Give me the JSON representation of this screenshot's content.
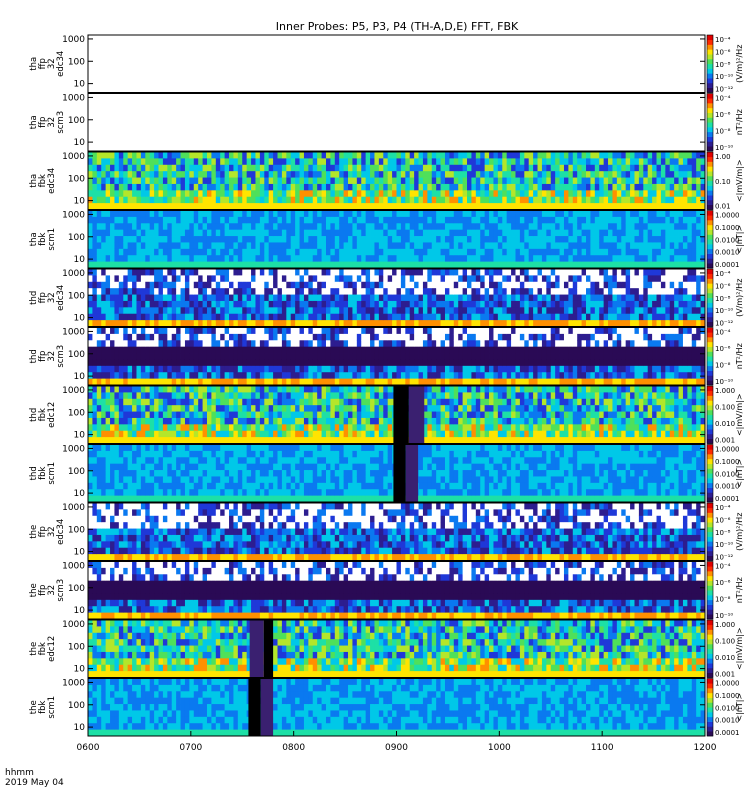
{
  "figure": {
    "title": "Inner Probes: P5, P3, P4 (TH-A,D,E) FFT, FBK",
    "time_label": "hhmm",
    "date_label": "2019 May 04"
  },
  "colors": {
    "colormap": [
      "#2a0a55",
      "#2d1d8f",
      "#1f38d8",
      "#0a79f0",
      "#00c8e8",
      "#1de0a6",
      "#4fe05a",
      "#b4e62a",
      "#ffe400",
      "#ff9000",
      "#ff2a00",
      "#e00000"
    ],
    "missing": "#ffffff",
    "fill_band": "#000000",
    "frame": "#000000"
  },
  "chart_data": {
    "type": "heatmap",
    "x_ticks": [
      "0600",
      "0700",
      "0800",
      "0900",
      "1000",
      "1100",
      "1200"
    ],
    "x_range": [
      "0600",
      "1200"
    ],
    "y_scale": "log",
    "y_range": [
      4,
      1500
    ],
    "y_tick_labels": [
      "10",
      "100",
      "1000"
    ],
    "panels": [
      {
        "id": "tha-ffp32-edc34",
        "probe": "tha",
        "type": "ffp",
        "ch": "32",
        "inst": "edc34",
        "unit": "(V/m)²/Hz",
        "cb_labels": [
          "10⁻⁴",
          "10⁻⁶",
          "10⁻⁸",
          "10⁻¹⁰",
          "10⁻¹²"
        ],
        "empty": true
      },
      {
        "id": "tha-ffp32-scm3",
        "probe": "tha",
        "type": "ffp",
        "ch": "32",
        "inst": "scm3",
        "unit": "nT²/Hz",
        "cb_labels": [
          "10⁻⁴",
          "10⁻⁶",
          "10⁻⁸",
          "10⁻¹⁰"
        ],
        "empty": true
      },
      {
        "id": "tha-fbk-edc34",
        "probe": "tha",
        "type": "fbk",
        "ch": "",
        "inst": "edc34",
        "unit": "<|mV/m|>",
        "cb_labels": [
          "1.00",
          "0.10",
          "0.01"
        ],
        "empty": false
      },
      {
        "id": "tha-fbk-scm1",
        "probe": "tha",
        "type": "fbk",
        "ch": "",
        "inst": "scm1",
        "unit": "<|nT|>",
        "cb_labels": [
          "1.0000",
          "0.1000",
          "0.0100",
          "0.0010",
          "0.0001"
        ],
        "empty": false
      },
      {
        "id": "thd-ffp32-edc34",
        "probe": "thd",
        "type": "ffp",
        "ch": "32",
        "inst": "edc34",
        "unit": "(V/m)²/Hz",
        "cb_labels": [
          "10⁻⁴",
          "10⁻⁶",
          "10⁻⁸",
          "10⁻¹⁰",
          "10⁻¹²"
        ],
        "empty": false
      },
      {
        "id": "thd-ffp32-scm3",
        "probe": "thd",
        "type": "ffp",
        "ch": "32",
        "inst": "scm3",
        "unit": "nT²/Hz",
        "cb_labels": [
          "10⁻⁴",
          "10⁻⁶",
          "10⁻⁸",
          "10⁻¹⁰"
        ],
        "empty": false
      },
      {
        "id": "thd-fbk-edc12",
        "probe": "thd",
        "type": "fbk",
        "ch": "",
        "inst": "edc12",
        "unit": "<|mV/m|>",
        "cb_labels": [
          "1.000",
          "0.100",
          "0.010",
          "0.001"
        ],
        "empty": false
      },
      {
        "id": "thd-fbk-scm1",
        "probe": "thd",
        "type": "fbk",
        "ch": "",
        "inst": "scm1",
        "unit": "<|nT|>",
        "cb_labels": [
          "1.0000",
          "0.1000",
          "0.0100",
          "0.0010",
          "0.0001"
        ],
        "empty": false
      },
      {
        "id": "the-ffp32-edc34",
        "probe": "the",
        "type": "ffp",
        "ch": "32",
        "inst": "edc34",
        "unit": "(V/m)²/Hz",
        "cb_labels": [
          "10⁻⁴",
          "10⁻⁶",
          "10⁻⁸",
          "10⁻¹⁰",
          "10⁻¹²"
        ],
        "empty": false
      },
      {
        "id": "the-ffp32-scm3",
        "probe": "the",
        "type": "ffp",
        "ch": "32",
        "inst": "scm3",
        "unit": "nT²/Hz",
        "cb_labels": [
          "10⁻⁴",
          "10⁻⁶",
          "10⁻⁸",
          "10⁻¹⁰"
        ],
        "empty": false
      },
      {
        "id": "the-fbk-edc12",
        "probe": "the",
        "type": "fbk",
        "ch": "",
        "inst": "edc12",
        "unit": "<|mV/m|>",
        "cb_labels": [
          "1.000",
          "0.100",
          "0.010",
          "0.001"
        ],
        "empty": false
      },
      {
        "id": "the-fbk-scm1",
        "probe": "the",
        "type": "fbk",
        "ch": "",
        "inst": "scm1",
        "unit": "<|nT|>",
        "cb_labels": [
          "1.0000",
          "0.1000",
          "0.0100",
          "0.0010",
          "0.0001"
        ],
        "empty": false
      }
    ]
  }
}
